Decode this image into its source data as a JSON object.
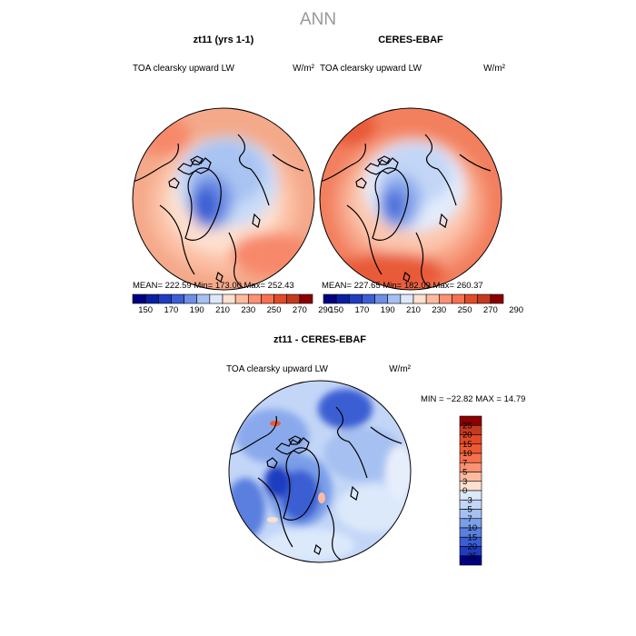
{
  "figure": {
    "title": "ANN",
    "colors": {
      "bwr_positive": [
        "#fde0cf",
        "#fcbba1",
        "#fc9272",
        "#f77150",
        "#ef5a33",
        "#e34a26",
        "#c43a1f",
        "#8b0000"
      ],
      "bwr_negative": [
        "#dce9fb",
        "#c3d6f7",
        "#a6c1f1",
        "#7a9ee8",
        "#5a7fdf",
        "#3a5ed3",
        "#1f3cc0",
        "#000080"
      ],
      "abs_scale": [
        "#000080",
        "#0a1fa0",
        "#1f3cc0",
        "#3a5ed3",
        "#6e8fe5",
        "#a6c1f1",
        "#dce9fb",
        "#fde0cf",
        "#fcbba1",
        "#fc9272",
        "#f77150",
        "#e34a26",
        "#c43a1f",
        "#8b0000"
      ]
    }
  },
  "panels": {
    "model": {
      "title": "zt11 (yrs 1-1)",
      "variable": "TOA clearsky upward LW",
      "units": "W/m²",
      "stats": "MEAN= 222.59   Min= 173.00   Max= 252.43"
    },
    "obs": {
      "title": "CERES-EBAF",
      "variable": "TOA clearsky upward LW",
      "units": "W/m²",
      "stats": "MEAN= 227.65   Min= 182.09   Max= 260.37"
    },
    "diff": {
      "title": "zt11 - CERES-EBAF",
      "variable": "TOA clearsky upward LW",
      "units": "W/m²",
      "stats": "MIN = −22.82  MAX =  14.79"
    }
  },
  "chart_data": [
    {
      "type": "heatmap",
      "title": "zt11 (yrs 1-1)",
      "subtitle": "TOA clearsky upward LW",
      "units": "W/m²",
      "projection": "polar-stereographic (north pole)",
      "mean": 222.59,
      "min": 173.0,
      "max": 252.43,
      "colorbar_levels": [
        150,
        170,
        190,
        210,
        230,
        250,
        270,
        290
      ]
    },
    {
      "type": "heatmap",
      "title": "CERES-EBAF",
      "subtitle": "TOA clearsky upward LW",
      "units": "W/m²",
      "projection": "polar-stereographic (north pole)",
      "mean": 227.65,
      "min": 182.09,
      "max": 260.37,
      "colorbar_levels": [
        150,
        170,
        190,
        210,
        230,
        250,
        270,
        290
      ]
    },
    {
      "type": "heatmap",
      "title": "zt11 - CERES-EBAF",
      "subtitle": "TOA clearsky upward LW",
      "units": "W/m²",
      "projection": "polar-stereographic (north pole)",
      "min": -22.82,
      "max": 14.79,
      "colorbar_levels": [
        "25",
        "20",
        "15",
        "10",
        "7",
        "5",
        "3",
        "0",
        "−3",
        "−5",
        "−7",
        "−10",
        "−15",
        "−20",
        "−25"
      ]
    }
  ]
}
